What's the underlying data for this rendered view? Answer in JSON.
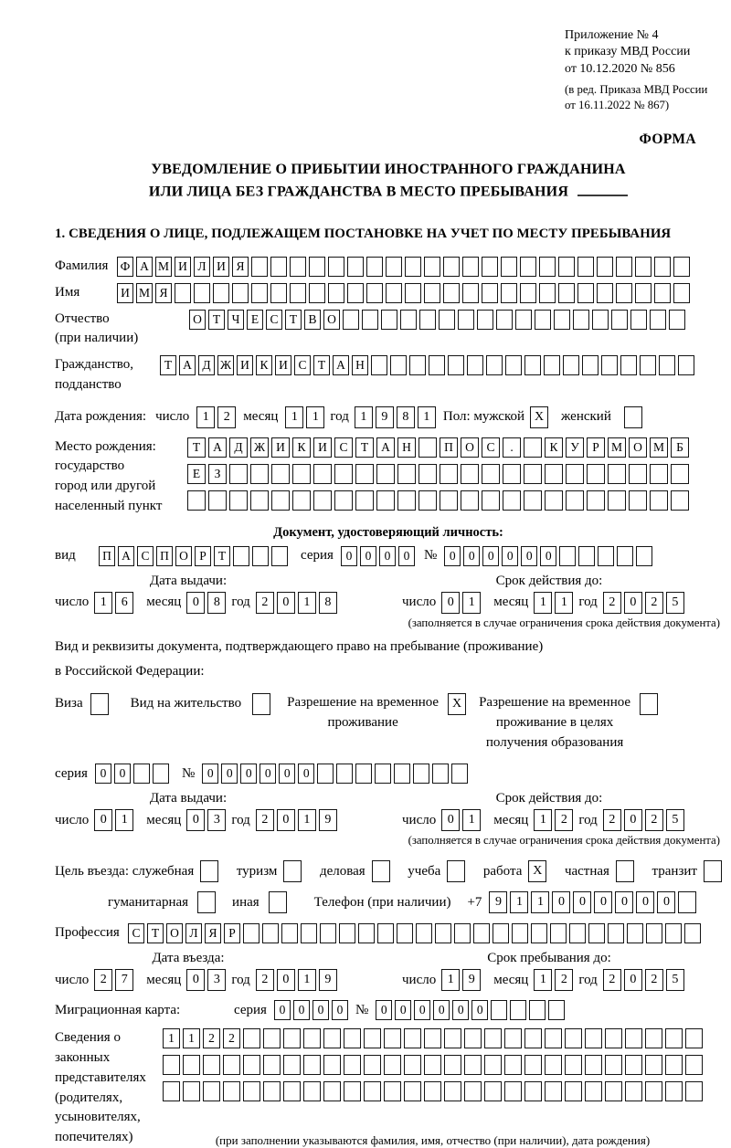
{
  "header": {
    "line1": "Приложение № 4",
    "line2": "к приказу МВД России",
    "line3": "от 10.12.2020 № 856",
    "sub1": "(в ред. Приказа МВД России",
    "sub2": "от 16.11.2022 № 867)",
    "form_label": "ФОРМА"
  },
  "title": {
    "line1": "УВЕДОМЛЕНИЕ О ПРИБЫТИИ ИНОСТРАННОГО ГРАЖДАНИНА",
    "line2": "ИЛИ ЛИЦА БЕЗ ГРАЖДАНСТВА В МЕСТО ПРЕБЫВАНИЯ"
  },
  "section1_heading": "1. СВЕДЕНИЯ О ЛИЦЕ, ПОДЛЕЖАЩЕМ ПОСТАНОВКЕ НА УЧЕТ ПО МЕСТУ ПРЕБЫВАНИЯ",
  "labels": {
    "day": "число",
    "month": "месяц",
    "year": "год",
    "series": "серия",
    "number": "№",
    "issue_date": "Дата выдачи:",
    "valid_until": "Срок действия до:",
    "limit_note": "(заполняется в случае ограничения срока действия документа)"
  },
  "person": {
    "surname": {
      "label": "Фамилия",
      "value": "ФАМИЛИЯ",
      "count": 30
    },
    "name": {
      "label": "Имя",
      "value": "ИМЯ",
      "count": 30
    },
    "patronymic": {
      "label": "Отчество",
      "sublabel": "(при наличии)",
      "value": "ОТЧЕСТВО",
      "count": 26
    },
    "citizenship": {
      "label": "Гражданство,",
      "sublabel": "подданство",
      "value": "ТАДЖИКИСТАН",
      "count": 28
    },
    "birth_date": {
      "label": "Дата рождения:",
      "day": "12",
      "month": "11",
      "year": "1981"
    },
    "sex": {
      "label": "Пол: мужской",
      "male_checked": "X",
      "female_label": "женский",
      "female_checked": ""
    },
    "birth_place": {
      "label": "Место рождения:\nгосударство\nгород или другой\nнаселенный пункт",
      "line1": {
        "value": "ТАДЖИКИСТАН ПОС. КУРМОМБ",
        "count": 24
      },
      "line2": {
        "value": "ЕЗ",
        "count": 24
      },
      "line3": {
        "value": "",
        "count": 24
      }
    }
  },
  "identity_doc": {
    "heading": "Документ, удостоверяющий личность:",
    "kind_label": "вид",
    "kind": {
      "value": "ПАСПОРТ",
      "count": 10
    },
    "series": {
      "value": "0000",
      "count": 4
    },
    "number": {
      "value": "000000",
      "count": 11
    },
    "issue": {
      "day": "16",
      "month": "08",
      "year": "2018"
    },
    "valid": {
      "day": "01",
      "month": "11",
      "year": "2025"
    }
  },
  "residence_doc": {
    "intro_line1": "Вид и реквизиты документа, подтверждающего право на пребывание (проживание)",
    "intro_line2": "в Российской Федерации:",
    "options": [
      {
        "label": "Виза",
        "checked": ""
      },
      {
        "label": "Вид на жительство",
        "checked": ""
      },
      {
        "label": "Разрешение на временное\nпроживание",
        "checked": "X"
      },
      {
        "label": "Разрешение на временное\nпроживание в целях\nполучения образования",
        "checked": ""
      }
    ],
    "series": {
      "value": "00",
      "count": 4
    },
    "number": {
      "value": "000000",
      "count": 14
    },
    "issue": {
      "day": "01",
      "month": "03",
      "year": "2019"
    },
    "valid": {
      "day": "01",
      "month": "12",
      "year": "2025"
    }
  },
  "visit": {
    "label": "Цель въезда: служебная",
    "options": [
      {
        "label": "туризм",
        "checked": ""
      },
      {
        "label": "деловая",
        "checked": ""
      },
      {
        "label": "учеба",
        "checked": ""
      },
      {
        "label": "работа",
        "checked": "X"
      },
      {
        "label": "частная",
        "checked": ""
      },
      {
        "label": "транзит",
        "checked": ""
      }
    ],
    "first_checked": "",
    "options2": [
      {
        "label": "гуманитарная",
        "checked": ""
      },
      {
        "label": "иная",
        "checked": ""
      }
    ],
    "phone_label": "Телефон (при наличии)",
    "phone_prefix": "+7",
    "phone": {
      "value": "911000000",
      "count": 10
    }
  },
  "profession": {
    "label": "Профессия",
    "value": "СТОЛЯР",
    "count": 30
  },
  "entry": {
    "entry_date_label": "Дата въезда:",
    "stay_until_label": "Срок пребывания до:",
    "entry_date": {
      "day": "27",
      "month": "03",
      "year": "2019"
    },
    "stay_until": {
      "day": "19",
      "month": "12",
      "year": "2025"
    }
  },
  "migration_card": {
    "label": "Миграционная карта:",
    "series": {
      "value": "0000",
      "count": 4
    },
    "number": {
      "value": "000000",
      "count": 10
    }
  },
  "representatives": {
    "label": "Сведения о\nзаконных\nпредставителях\n(родителях,\nусыновителях,\nпопечителях)",
    "line1": {
      "value": "1122",
      "count": 27
    },
    "line2": {
      "value": "",
      "count": 27
    },
    "line3": {
      "value": "",
      "count": 27
    },
    "note": "(при заполнении указываются фамилия, имя, отчество (при наличии), дата рождения)"
  }
}
